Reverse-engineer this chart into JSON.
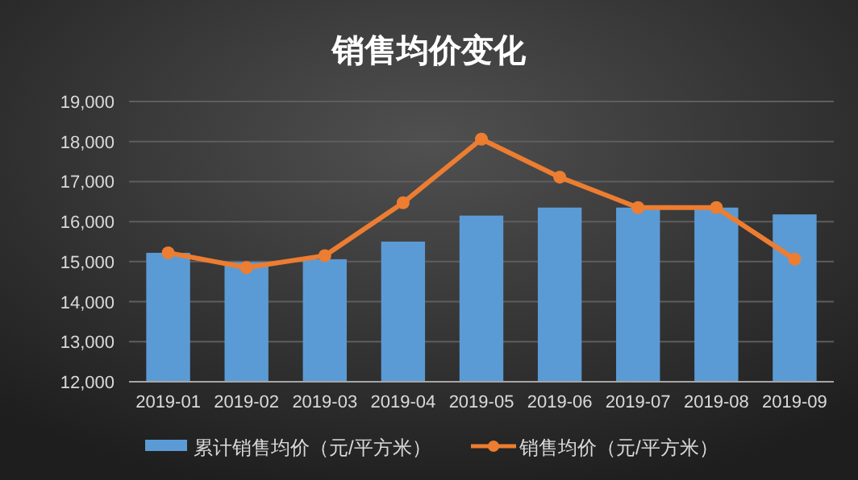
{
  "chart_data": {
    "type": "bar",
    "title": "销售均价变化",
    "categories": [
      "2019-01",
      "2019-02",
      "2019-03",
      "2019-04",
      "2019-05",
      "2019-06",
      "2019-07",
      "2019-08",
      "2019-09"
    ],
    "series": [
      {
        "name": "累计销售均价（元/平方米）",
        "color": "#5b9bd5",
        "values": [
          15220,
          14990,
          15060,
          15500,
          16150,
          16350,
          16350,
          16350,
          16180
        ]
      },
      {
        "name": "销售均价（元/平方米）",
        "type": "line",
        "color": "#ed7d31",
        "marker": "circle",
        "values": [
          15220,
          14850,
          15150,
          16470,
          18060,
          17110,
          16350,
          16350,
          15060
        ]
      }
    ],
    "ylim": [
      12000,
      19000
    ],
    "yticks": [
      {
        "value": 12000,
        "label": "12,000"
      },
      {
        "value": 13000,
        "label": "13,000"
      },
      {
        "value": 14000,
        "label": "14,000"
      },
      {
        "value": 15000,
        "label": "15,000"
      },
      {
        "value": 16000,
        "label": "16,000"
      },
      {
        "value": 17000,
        "label": "17,000"
      },
      {
        "value": 18000,
        "label": "18,000"
      },
      {
        "value": 19000,
        "label": "19,000"
      }
    ],
    "grid": "y",
    "legend": "bottom"
  }
}
